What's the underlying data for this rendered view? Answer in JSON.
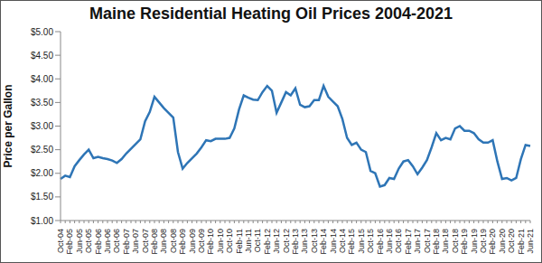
{
  "chart_data": {
    "type": "line",
    "title": "Maine Residential Heating Oil Prices 2004-2021",
    "y_label": "Price per Gallon",
    "categories": [
      "Oct-04",
      null,
      "Feb-05",
      null,
      "Jun-05",
      null,
      "Oct-05",
      null,
      "Feb-06",
      null,
      "Jun-06",
      null,
      "Oct-06",
      null,
      "Feb-07",
      null,
      "Jun-07",
      null,
      "Oct-07",
      null,
      "Feb-08",
      null,
      "Jun-08",
      null,
      "Oct-08",
      null,
      "Feb-09",
      null,
      "Jun-09",
      null,
      "Oct-09",
      null,
      "Feb-10",
      null,
      "Jun-10",
      null,
      "Oct-10",
      null,
      "Feb-11",
      null,
      "Jun-11",
      null,
      "Oct-11",
      null,
      "Feb-12",
      null,
      "Jun-12",
      null,
      "Oct-12",
      null,
      "Feb-13",
      null,
      "Jun-13",
      null,
      "Oct-13",
      null,
      "Feb-14",
      null,
      "Jun-14",
      null,
      "Oct-14",
      null,
      "Feb-15",
      null,
      "Jun-15",
      null,
      "Oct-15",
      null,
      "Feb-16",
      null,
      "Jun-16",
      null,
      "Oct-16",
      null,
      "Feb-17",
      null,
      "Jun-17",
      null,
      "Oct-17",
      null,
      "Feb-18",
      null,
      "Jun-18",
      null,
      "Oct-18",
      null,
      "Feb-19",
      null,
      "Jun-19",
      null,
      "Oct-19",
      null,
      "Feb-20",
      null,
      "Jun-20",
      null,
      "Oct-20",
      null,
      "Feb-21",
      null,
      "Jun-21"
    ],
    "values": [
      1.88,
      1.95,
      1.92,
      2.15,
      2.28,
      2.4,
      2.5,
      2.32,
      2.35,
      2.32,
      2.3,
      2.27,
      2.22,
      2.3,
      2.42,
      2.52,
      2.62,
      2.72,
      3.1,
      3.3,
      3.62,
      3.5,
      3.38,
      3.28,
      3.18,
      2.45,
      2.1,
      2.22,
      2.32,
      2.42,
      2.55,
      2.7,
      2.68,
      2.73,
      2.73,
      2.73,
      2.75,
      2.95,
      3.35,
      3.65,
      3.6,
      3.56,
      3.55,
      3.72,
      3.85,
      3.75,
      3.28,
      3.5,
      3.72,
      3.65,
      3.8,
      3.45,
      3.4,
      3.42,
      3.55,
      3.55,
      3.85,
      3.62,
      3.52,
      3.42,
      3.15,
      2.75,
      2.6,
      2.65,
      2.5,
      2.45,
      2.05,
      2.0,
      1.72,
      1.75,
      1.9,
      1.88,
      2.1,
      2.25,
      2.28,
      2.15,
      1.98,
      2.12,
      2.28,
      2.55,
      2.85,
      2.7,
      2.75,
      2.72,
      2.95,
      3.0,
      2.9,
      2.9,
      2.85,
      2.72,
      2.65,
      2.65,
      2.7,
      2.25,
      1.88,
      1.9,
      1.85,
      1.9,
      2.3,
      2.6,
      2.58
    ],
    "color": "#2e75b6",
    "ylim": [
      1,
      5
    ],
    "yticks": [
      {
        "value": 1,
        "label": "$1.00"
      },
      {
        "value": 1.5,
        "label": "$1.50"
      },
      {
        "value": 2,
        "label": "$2.00"
      },
      {
        "value": 2.5,
        "label": "$2.50"
      },
      {
        "value": 3,
        "label": "$3.00"
      },
      {
        "value": 3.5,
        "label": "$3.50"
      },
      {
        "value": 4,
        "label": "$4.00"
      },
      {
        "value": 4.5,
        "label": "$4.50"
      },
      {
        "value": 5,
        "label": "$5.00"
      }
    ],
    "grid": false
  }
}
